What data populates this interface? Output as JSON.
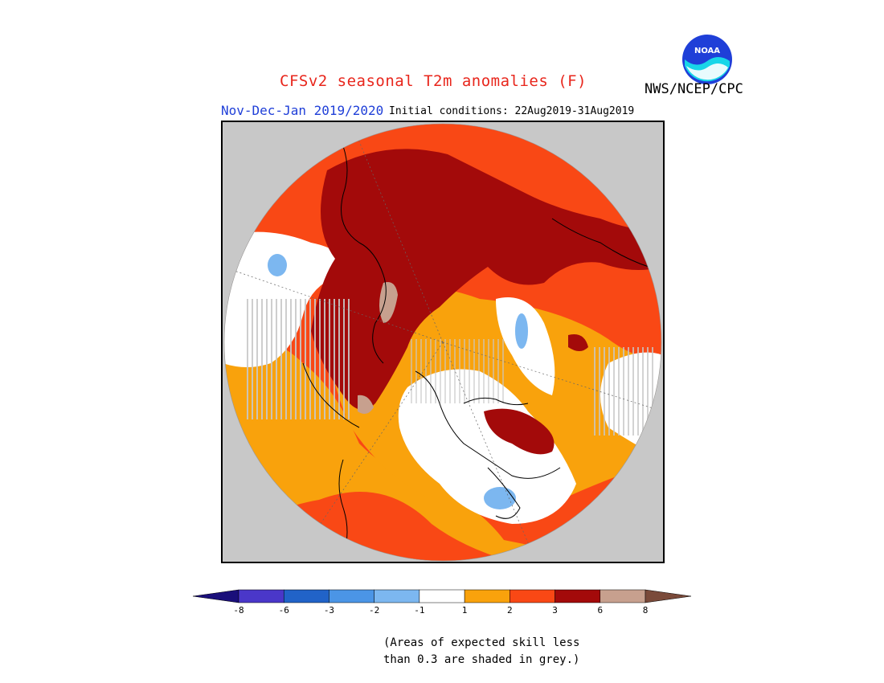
{
  "title": "CFSv2 seasonal T2m anomalies (F)",
  "agency": "NWS/NCEP/CPC",
  "logo_text": "NOAA",
  "period": "Nov-Dec-Jan 2019/2020",
  "initial_conditions": "Initial conditions: 22Aug2019-31Aug2019",
  "note_line1": "(Areas of expected skill less",
  "note_line2": "than 0.3 are shaded in grey.)",
  "colors": {
    "title": "#e8261c",
    "period": "#1f3fd8",
    "low_skill_grey": "#c8c8c8"
  },
  "legend": {
    "labels": [
      "-8",
      "-6",
      "-3",
      "-2",
      "-1",
      "1",
      "2",
      "3",
      "6",
      "8"
    ],
    "colors": [
      "#1a0f7a",
      "#4a37c9",
      "#2163c8",
      "#4b95e6",
      "#7cb7f0",
      "#ffffff",
      "#f9a20c",
      "#f94815",
      "#a30a0a",
      "#c7a08e",
      "#7a4a3a"
    ]
  }
}
